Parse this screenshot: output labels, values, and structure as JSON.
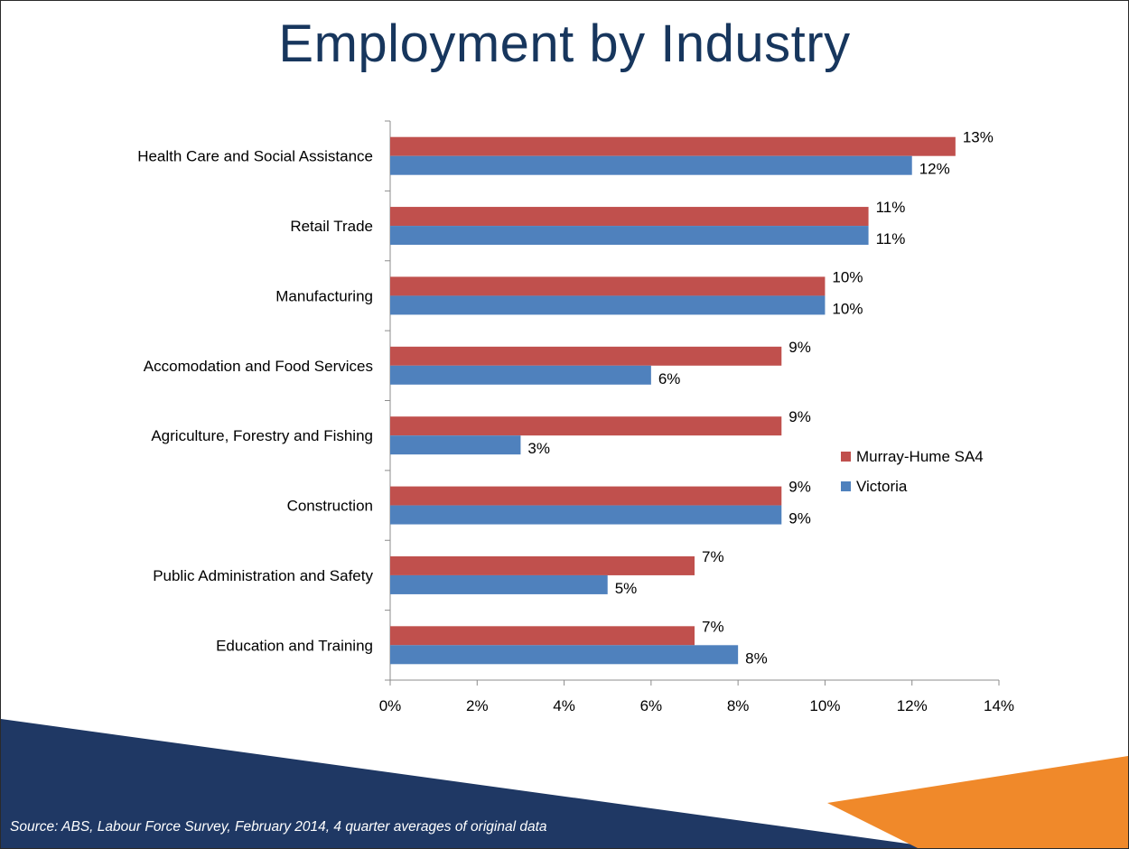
{
  "slide": {
    "title": "Employment by Industry",
    "source": "Source: ABS, Labour Force Survey, February 2014, 4 quarter averages of original data"
  },
  "colors": {
    "murray_hume": "#c0504d",
    "victoria": "#4f81bd",
    "title": "#17365d",
    "footer_navy": "#1f3864",
    "footer_orange": "#f0892a"
  },
  "chart_data": {
    "type": "bar",
    "orientation": "horizontal",
    "title": "",
    "xlabel": "",
    "ylabel": "",
    "xlim": [
      0,
      14
    ],
    "x_ticks": [
      "0%",
      "2%",
      "4%",
      "6%",
      "8%",
      "10%",
      "12%",
      "14%"
    ],
    "grid": false,
    "legend_position": "right",
    "categories": [
      "Health Care and Social Assistance",
      "Retail Trade",
      "Manufacturing",
      "Accomodation and Food Services",
      "Agriculture, Forestry and Fishing",
      "Construction",
      "Public Administration and Safety",
      "Education and Training"
    ],
    "series": [
      {
        "name": "Murray-Hume SA4",
        "values": [
          13,
          11,
          10,
          9,
          9,
          9,
          7,
          7
        ],
        "labels": [
          "13%",
          "11%",
          "10%",
          "9%",
          "9%",
          "9%",
          "7%",
          "7%"
        ]
      },
      {
        "name": "Victoria",
        "values": [
          12,
          11,
          10,
          6,
          3,
          9,
          5,
          8
        ],
        "labels": [
          "12%",
          "11%",
          "10%",
          "6%",
          "3%",
          "9%",
          "5%",
          "8%"
        ]
      }
    ]
  }
}
